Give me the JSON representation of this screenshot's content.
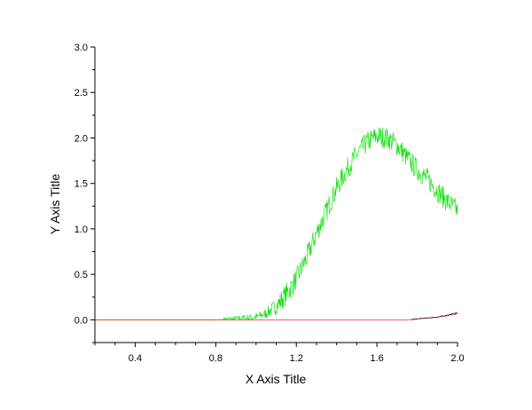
{
  "chart_data": {
    "type": "line",
    "xlabel": "X Axis Title",
    "ylabel": "Y Axis Title",
    "xlim": [
      0.2,
      2.0
    ],
    "ylim": [
      -0.25,
      3.0
    ],
    "x_ticks": [
      "0.4",
      "0.8",
      "1.2",
      "1.6",
      "2.0"
    ],
    "x_tick_values": [
      0.4,
      0.8,
      1.2,
      1.6,
      2.0
    ],
    "y_ticks": [
      "0.0",
      "0.5",
      "1.0",
      "1.5",
      "2.0",
      "2.5",
      "3.0"
    ],
    "y_tick_values": [
      0.0,
      0.5,
      1.0,
      1.5,
      2.0,
      2.5,
      3.0
    ],
    "grid": false,
    "series": [
      {
        "color": "#00dd00",
        "noise": 0.12,
        "x": [
          0.2,
          0.8,
          0.9,
          1.0,
          1.05,
          1.1,
          1.15,
          1.2,
          1.25,
          1.3,
          1.35,
          1.4,
          1.45,
          1.5,
          1.55,
          1.6,
          1.65,
          1.7,
          1.75,
          1.8,
          1.85,
          1.9,
          1.95,
          2.0
        ],
        "values": [
          0.0,
          0.0,
          0.01,
          0.03,
          0.07,
          0.15,
          0.28,
          0.45,
          0.68,
          0.95,
          1.2,
          1.45,
          1.65,
          1.82,
          1.95,
          2.02,
          2.0,
          1.92,
          1.78,
          1.65,
          1.55,
          1.42,
          1.3,
          1.2
        ]
      },
      {
        "color": "#ff0000",
        "noise": 0.01,
        "x": [
          0.2,
          1.75,
          1.8,
          1.85,
          1.9,
          1.95,
          2.0
        ],
        "values": [
          0.0,
          0.0,
          0.01,
          0.02,
          0.03,
          0.05,
          0.08
        ]
      },
      {
        "color": "#000000",
        "noise": 0.015,
        "x": [
          1.77,
          1.8,
          1.85,
          1.9,
          1.95,
          2.0
        ],
        "values": [
          0.0,
          0.01,
          0.02,
          0.03,
          0.05,
          0.07
        ]
      }
    ]
  }
}
